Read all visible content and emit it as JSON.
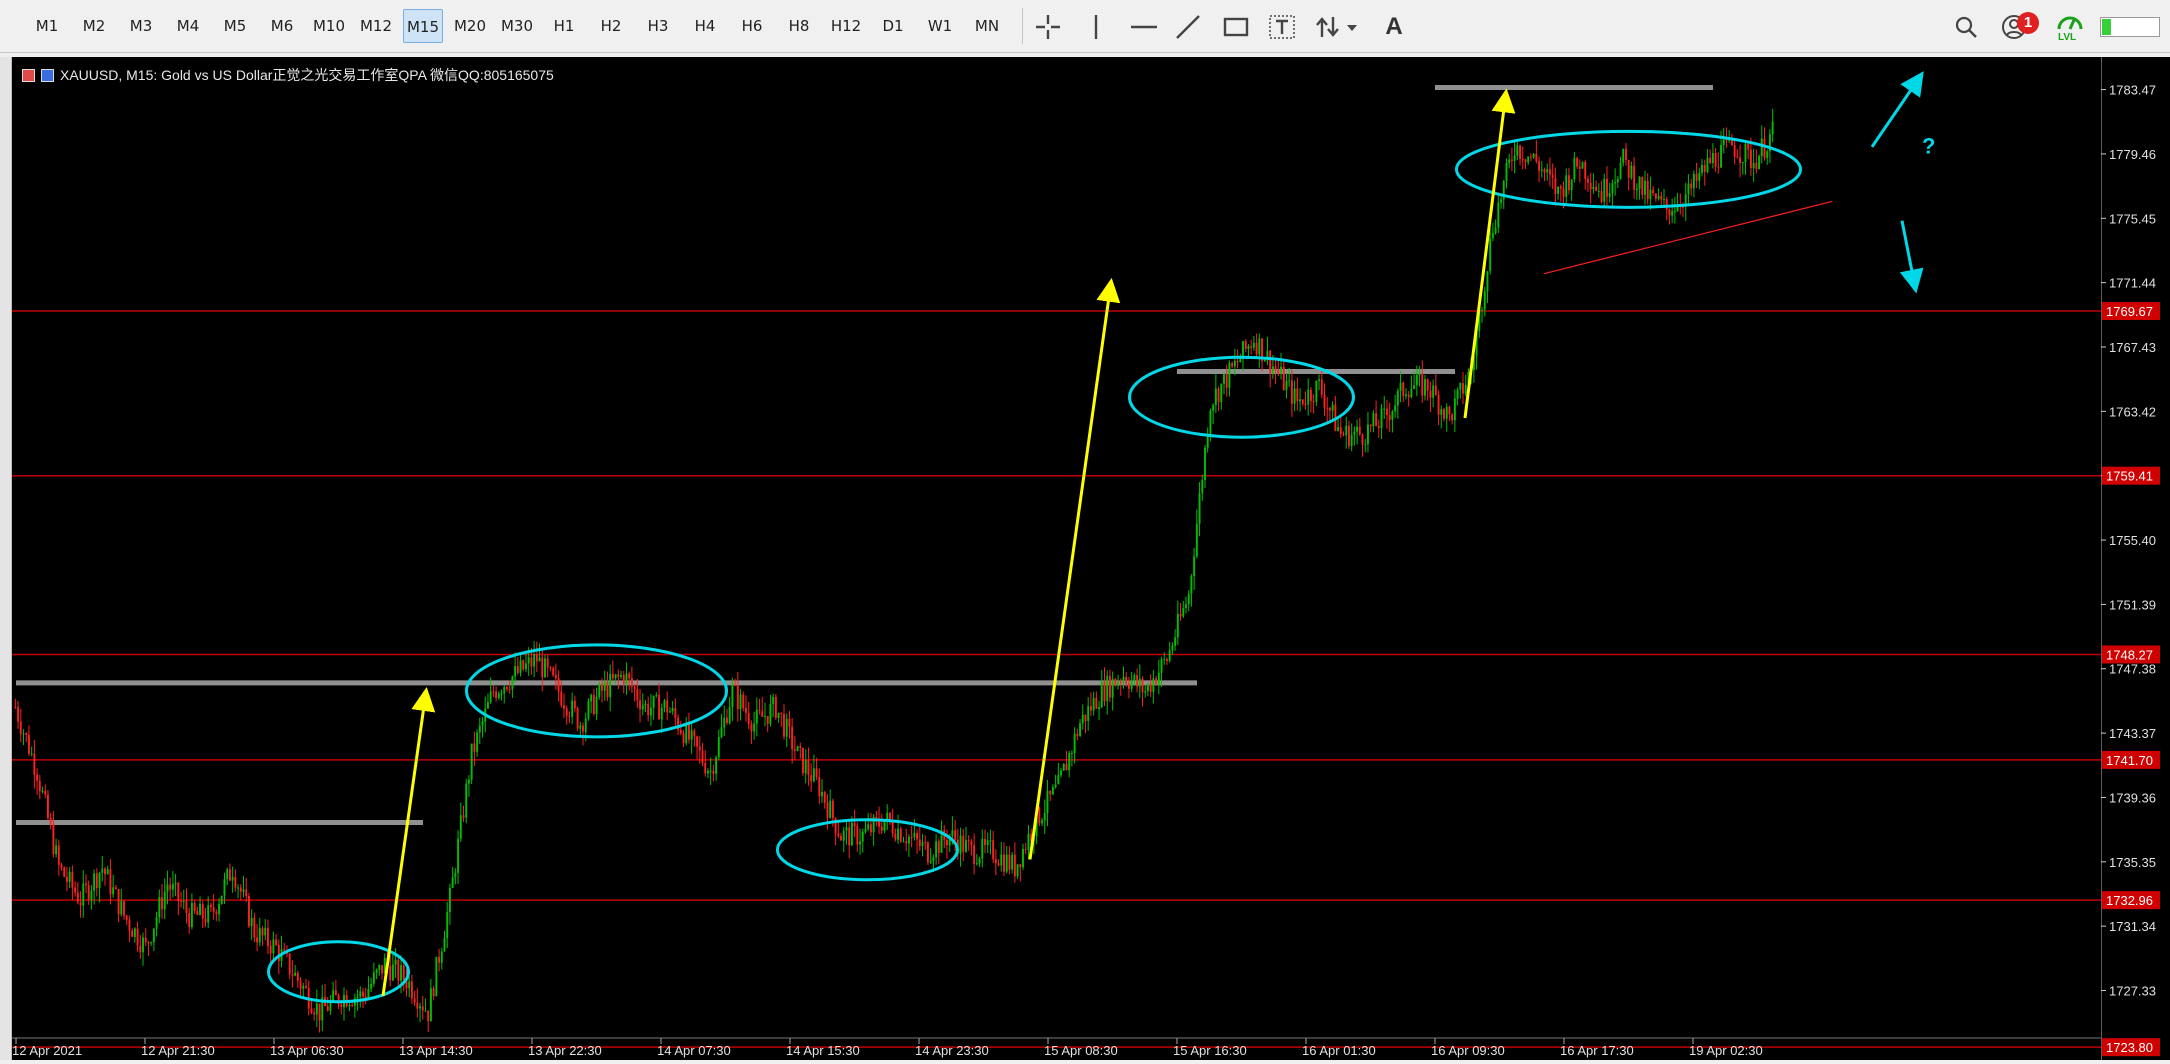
{
  "toolbar": {
    "timeframes": [
      "M1",
      "M2",
      "M3",
      "M4",
      "M5",
      "M6",
      "M10",
      "M12",
      "M15",
      "M20",
      "M30",
      "H1",
      "H2",
      "H3",
      "H4",
      "H6",
      "H8",
      "H12",
      "D1",
      "W1",
      "MN"
    ],
    "active_timeframe": "M15",
    "notification_count": "1",
    "lvl_label": "LVL",
    "text_tool_label": "A",
    "signal_level": 0.15,
    "tools": [
      "crosshair-icon",
      "vertical-line-icon",
      "horizontal-line-icon",
      "trendline-icon",
      "rectangle-icon",
      "text-label-icon",
      "arrows-icon",
      "text-icon"
    ],
    "right_icons": [
      "search-icon",
      "user-icon",
      "lvl-icon"
    ]
  },
  "chart": {
    "title": "XAUUSD, M15:  Gold vs US Dollar正觉之光交易工作室QPA 微信QQ:805165075",
    "question_mark": "?",
    "colors": {
      "background": "#000000",
      "bull": "#00c000",
      "bear": "#ff2020",
      "level": "#c00000",
      "support_band": "#909090",
      "ellipse": "#00d8e8",
      "arrow_yellow": "#ffff00"
    }
  },
  "chart_data": {
    "type": "candlestick",
    "symbol": "XAUUSD",
    "timeframe": "M15",
    "ylim": [
      1723.0,
      1785.5
    ],
    "y_ticks": [
      "1783.47",
      "1779.46",
      "1775.45",
      "1771.44",
      "1767.43",
      "1763.42",
      "1759.41",
      "1755.40",
      "1751.39",
      "1747.38",
      "1743.37",
      "1739.36",
      "1735.35",
      "1731.34",
      "1727.33"
    ],
    "x_ticks": [
      "12 Apr 2021",
      "12 Apr 21:30",
      "13 Apr 06:30",
      "13 Apr 14:30",
      "13 Apr 22:30",
      "14 Apr 07:30",
      "14 Apr 15:30",
      "14 Apr 23:30",
      "15 Apr 08:30",
      "15 Apr 16:30",
      "16 Apr 01:30",
      "16 Apr 09:30",
      "16 Apr 17:30",
      "19 Apr 02:30"
    ],
    "price_levels": [
      "1769.67",
      "1759.41",
      "1748.27",
      "1741.70",
      "1732.96",
      "1723.80"
    ],
    "support_bands": [
      {
        "price": 1746.5,
        "from": "12 Apr 2021",
        "to": "15 Apr 16:30"
      },
      {
        "price": 1737.8,
        "from": "12 Apr 2021",
        "to": "13 Apr 14:30"
      },
      {
        "price": 1765.9,
        "from": "15 Apr 16:30",
        "to": "16 Apr 09:30"
      },
      {
        "price": 1783.6,
        "from": "16 Apr 09:30",
        "to": "19 Apr 02:30"
      }
    ],
    "close_path": [
      1745,
      1741,
      1735,
      1733,
      1735,
      1732,
      1730,
      1734,
      1732,
      1732,
      1735,
      1731,
      1730,
      1728,
      1726,
      1727,
      1727,
      1729,
      1728,
      1726,
      1733,
      1742,
      1746,
      1747,
      1748,
      1746,
      1744,
      1746,
      1747,
      1745,
      1745,
      1743,
      1741,
      1746,
      1744,
      1745,
      1742,
      1740,
      1737,
      1737,
      1738,
      1737,
      1736,
      1737,
      1736,
      1736,
      1735,
      1738,
      1740,
      1744,
      1746,
      1747,
      1746,
      1748,
      1752,
      1764,
      1766,
      1768,
      1766,
      1764,
      1765,
      1762,
      1762,
      1763,
      1765,
      1765,
      1763,
      1766,
      1775,
      1780,
      1779,
      1777,
      1779,
      1777,
      1779,
      1777,
      1776,
      1777,
      1779,
      1780,
      1779,
      1781
    ]
  }
}
